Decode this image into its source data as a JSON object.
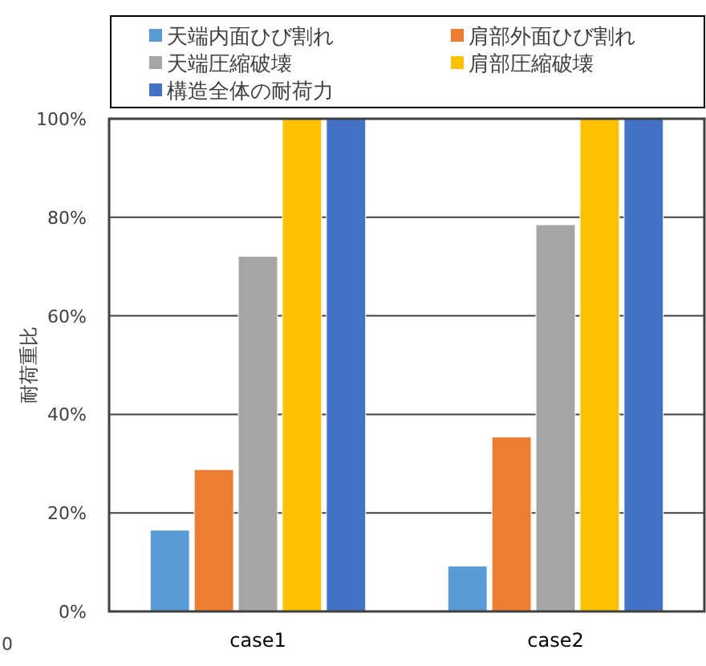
{
  "chart_data": {
    "type": "bar",
    "categories": [
      "case1",
      "case2"
    ],
    "series": [
      {
        "name": "天端内面ひび割れ",
        "color": "#5b9bd5",
        "values": [
          16.5,
          9.2
        ]
      },
      {
        "name": "肩部外面ひび割れ",
        "color": "#ed7d31",
        "values": [
          28.8,
          35.4
        ]
      },
      {
        "name": "天端圧縮破壊",
        "color": "#a5a5a5",
        "values": [
          72.1,
          78.5
        ]
      },
      {
        "name": "肩部圧縮破壊",
        "color": "#ffc000",
        "values": [
          100,
          100
        ]
      },
      {
        "name": "構造全体の耐荷力",
        "color": "#4472c4",
        "values": [
          100,
          100
        ]
      }
    ],
    "ylabel": "耐荷重比",
    "ylim": [
      0,
      100
    ],
    "yticks": [
      {
        "value": 0,
        "label": "0%"
      },
      {
        "value": 20,
        "label": "20%"
      },
      {
        "value": 40,
        "label": "40%"
      },
      {
        "value": 60,
        "label": "60%"
      },
      {
        "value": 80,
        "label": "80%"
      },
      {
        "value": 100,
        "label": "100%"
      }
    ],
    "grid": "y",
    "legend": "top",
    "annotations": [
      "0"
    ]
  }
}
